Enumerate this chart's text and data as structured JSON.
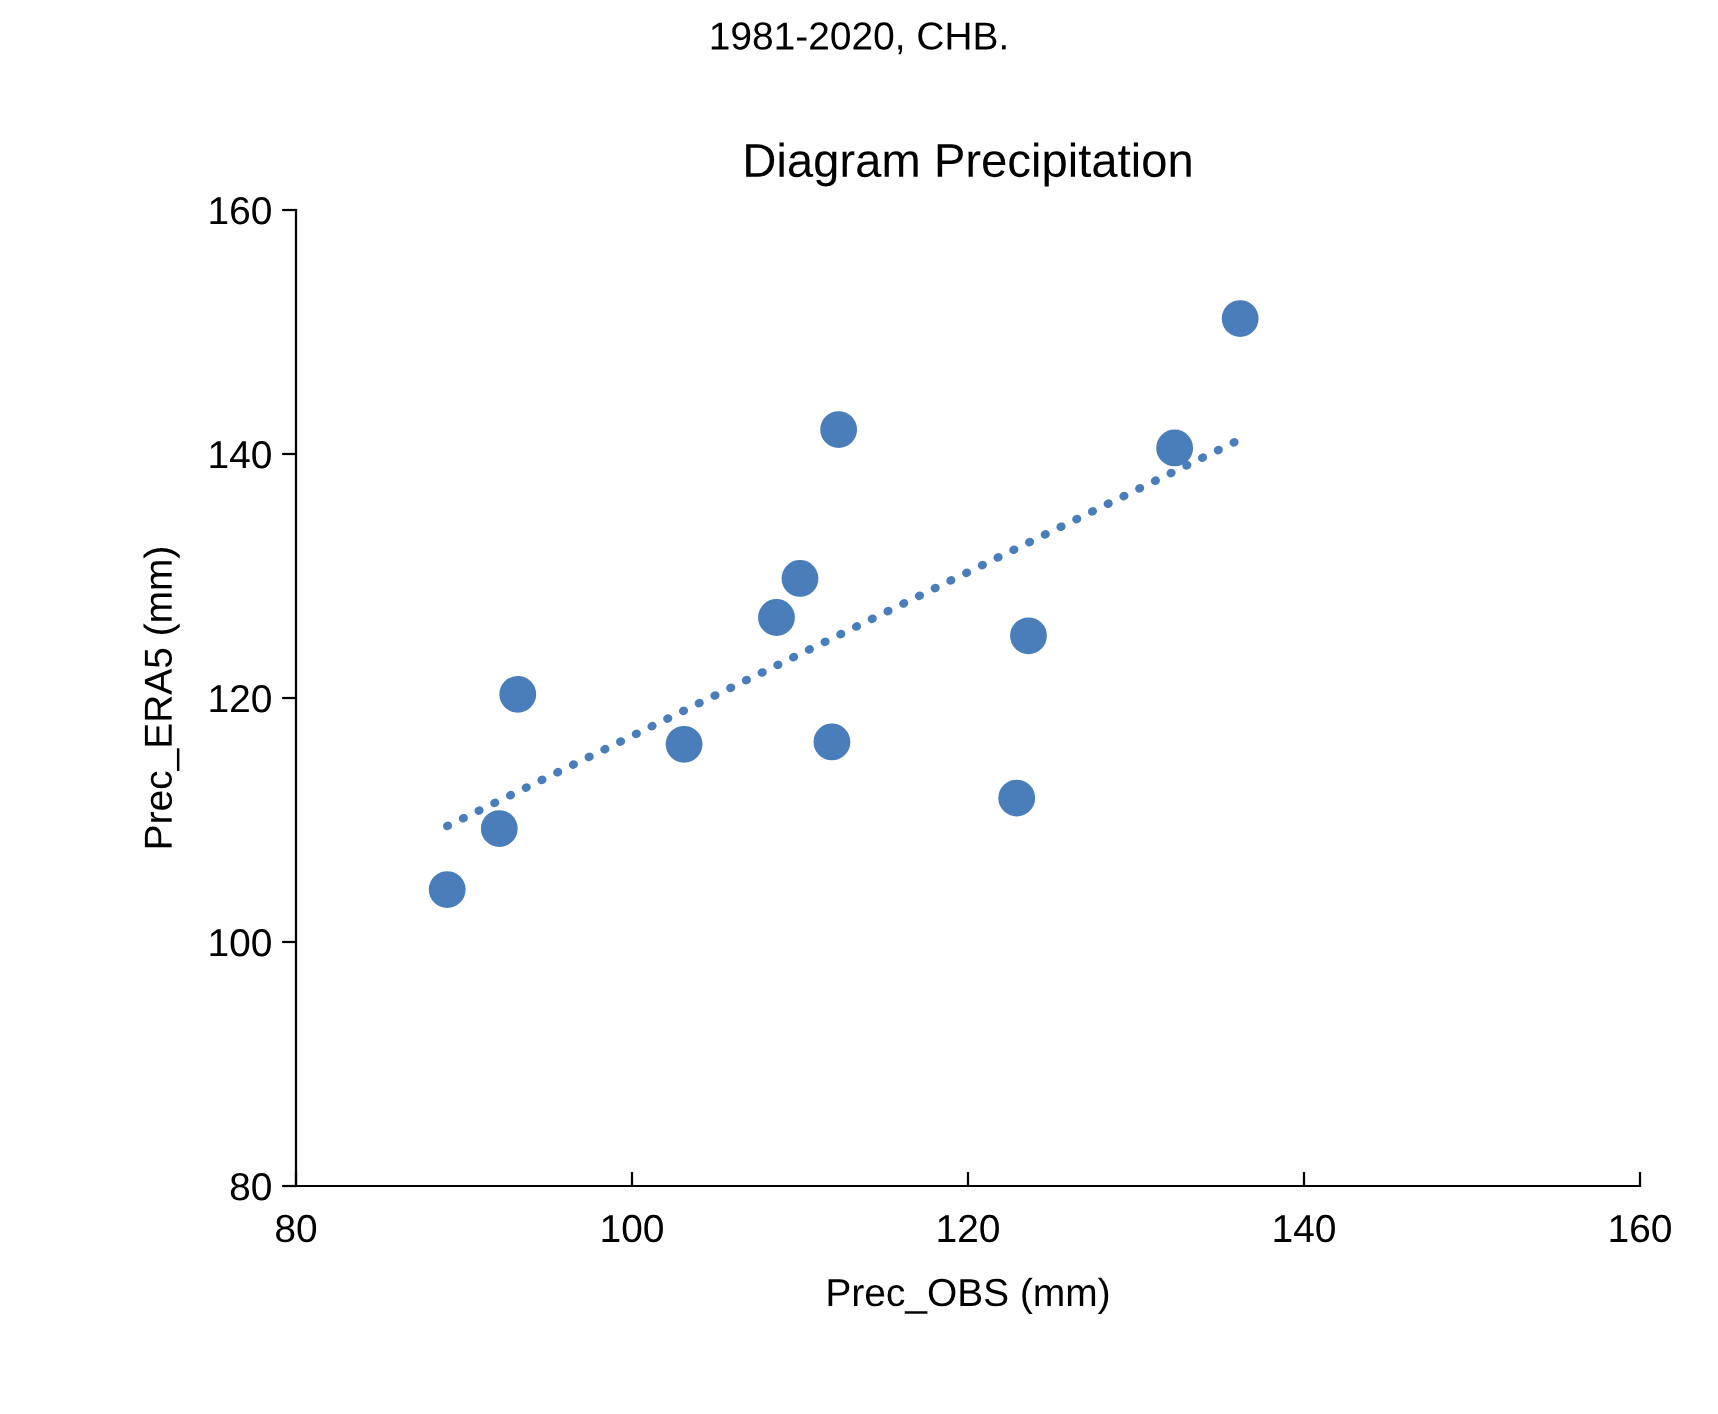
{
  "chart_data": {
    "type": "scatter",
    "title": "Diagram Precipitation",
    "xlabel": "Prec_OBS (mm)",
    "ylabel": "Prec_ERA5 (mm)",
    "annotations": [
      "1981-2020, CHB."
    ],
    "x": [
      89.0,
      92.1,
      93.2,
      103.1,
      108.6,
      110.0,
      111.9,
      112.3,
      122.9,
      123.6,
      132.3,
      136.2
    ],
    "series": [
      {
        "color": "#4a7ebb",
        "marker": "circle",
        "values": [
          104.3,
          109.3,
          120.3,
          116.2,
          126.6,
          129.8,
          116.4,
          142.0,
          111.8,
          125.1,
          140.5,
          151.1
        ]
      },
      {
        "type": "line",
        "color": "#4a7ebb",
        "line_style": "dotted",
        "x": [
          89.0,
          136.2
        ],
        "values": [
          109.5,
          141.2
        ]
      }
    ],
    "xlim": [
      80,
      160
    ],
    "ylim": [
      80,
      160
    ],
    "xticks": [
      80,
      100,
      120,
      140,
      160
    ],
    "yticks": [
      80,
      100,
      120,
      140,
      160
    ],
    "grid": false,
    "legend": false
  }
}
